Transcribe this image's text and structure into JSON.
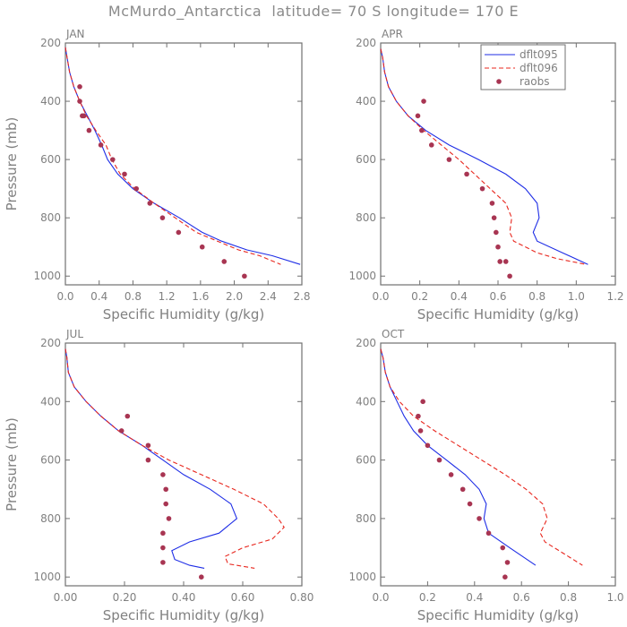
{
  "figure": {
    "title": "McMurdo_Antarctica  latitude= 70 S longitude= 170 E",
    "colors": {
      "axis": "#707070",
      "text": "#808080",
      "dflt095": "#1f2ee6",
      "dflt096": "#e8271e",
      "raobs": "#a83552"
    }
  },
  "chart_data": [
    {
      "type": "line",
      "panel": "JAN",
      "title": "JAN",
      "xlabel": "Specific Humidity (g/kg)",
      "ylabel": "Pressure (mb)",
      "xlim": [
        0,
        2.8
      ],
      "ylim": [
        200,
        1030
      ],
      "xticks": [
        "0.0",
        "0.4",
        "0.8",
        "1.2",
        "1.6",
        "2.0",
        "2.4",
        "2.8"
      ],
      "yticks": [
        "200",
        "400",
        "600",
        "800",
        "1000"
      ],
      "series": [
        {
          "name": "dflt095",
          "style": "solid",
          "x": [
            0.0,
            0.02,
            0.05,
            0.1,
            0.17,
            0.26,
            0.35,
            0.43,
            0.5,
            0.62,
            0.8,
            1.05,
            1.35,
            1.62,
            1.85,
            2.15,
            2.45,
            2.78
          ],
          "y": [
            215,
            250,
            300,
            350,
            400,
            450,
            500,
            550,
            600,
            650,
            700,
            750,
            800,
            850,
            880,
            910,
            930,
            960
          ]
        },
        {
          "name": "dflt096",
          "style": "dashed",
          "x": [
            0.0,
            0.02,
            0.05,
            0.1,
            0.17,
            0.25,
            0.36,
            0.48,
            0.55,
            0.65,
            0.82,
            1.05,
            1.3,
            1.55,
            1.8,
            2.05,
            2.3,
            2.55
          ],
          "y": [
            215,
            250,
            300,
            350,
            400,
            450,
            500,
            550,
            600,
            650,
            700,
            750,
            800,
            850,
            880,
            910,
            930,
            960
          ]
        },
        {
          "name": "raobs",
          "style": "markers",
          "x": [
            0.17,
            0.17,
            0.2,
            0.22,
            0.28,
            0.42,
            0.56,
            0.7,
            0.84,
            1.0,
            1.15,
            1.34,
            1.62,
            1.88,
            2.12
          ],
          "y": [
            350,
            400,
            450,
            450,
            500,
            550,
            600,
            650,
            700,
            750,
            800,
            850,
            900,
            950,
            1000
          ]
        }
      ]
    },
    {
      "type": "line",
      "panel": "APR",
      "title": "APR",
      "xlabel": "Specific Humidity (g/kg)",
      "ylabel": "Pressure (mb)",
      "xlim": [
        0,
        1.2
      ],
      "ylim": [
        200,
        1030
      ],
      "xticks": [
        "0.0",
        "0.2",
        "0.4",
        "0.6",
        "0.8",
        "1.0",
        "1.2"
      ],
      "yticks": [
        "200",
        "400",
        "600",
        "800",
        "1000"
      ],
      "legend": [
        "dflt095",
        "dflt096",
        "raobs"
      ],
      "series": [
        {
          "name": "dflt095",
          "style": "solid",
          "x": [
            0.0,
            0.01,
            0.02,
            0.04,
            0.08,
            0.14,
            0.23,
            0.35,
            0.5,
            0.64,
            0.74,
            0.8,
            0.81,
            0.78,
            0.8,
            0.93,
            1.06
          ],
          "y": [
            220,
            250,
            300,
            350,
            400,
            450,
            500,
            550,
            600,
            650,
            700,
            750,
            800,
            850,
            880,
            920,
            960
          ]
        },
        {
          "name": "dflt096",
          "style": "dashed",
          "x": [
            0.0,
            0.01,
            0.02,
            0.04,
            0.08,
            0.14,
            0.22,
            0.31,
            0.4,
            0.48,
            0.56,
            0.64,
            0.67,
            0.66,
            0.68,
            0.8,
            0.9,
            1.05
          ],
          "y": [
            220,
            250,
            300,
            350,
            400,
            450,
            500,
            550,
            600,
            650,
            700,
            750,
            800,
            850,
            880,
            920,
            940,
            960
          ]
        },
        {
          "name": "raobs",
          "style": "markers",
          "x": [
            0.22,
            0.19,
            0.21,
            0.26,
            0.35,
            0.44,
            0.52,
            0.57,
            0.58,
            0.59,
            0.6,
            0.61,
            0.64,
            0.66
          ],
          "y": [
            400,
            450,
            500,
            550,
            600,
            650,
            700,
            750,
            800,
            850,
            900,
            950,
            950,
            1000
          ]
        }
      ]
    },
    {
      "type": "line",
      "panel": "JUL",
      "title": "JUL",
      "xlabel": "Specific Humidity (g/kg)",
      "ylabel": "Pressure (mb)",
      "xlim": [
        0,
        0.8
      ],
      "ylim": [
        200,
        1030
      ],
      "xticks": [
        "0.00",
        "0.20",
        "0.40",
        "0.60",
        "0.80"
      ],
      "yticks": [
        "200",
        "400",
        "600",
        "800",
        "1000"
      ],
      "series": [
        {
          "name": "dflt095",
          "style": "solid",
          "x": [
            0.0,
            0.005,
            0.01,
            0.03,
            0.07,
            0.12,
            0.18,
            0.26,
            0.33,
            0.4,
            0.49,
            0.56,
            0.58,
            0.52,
            0.42,
            0.36,
            0.37,
            0.42,
            0.47
          ],
          "y": [
            220,
            250,
            300,
            350,
            400,
            450,
            500,
            550,
            600,
            650,
            700,
            750,
            800,
            850,
            880,
            910,
            940,
            960,
            970
          ]
        },
        {
          "name": "dflt096",
          "style": "dashed",
          "x": [
            0.0,
            0.005,
            0.01,
            0.03,
            0.07,
            0.12,
            0.18,
            0.26,
            0.35,
            0.46,
            0.57,
            0.67,
            0.72,
            0.74,
            0.7,
            0.6,
            0.54,
            0.55,
            0.64
          ],
          "y": [
            220,
            250,
            300,
            350,
            400,
            450,
            500,
            550,
            600,
            650,
            700,
            750,
            800,
            830,
            870,
            900,
            930,
            955,
            970
          ]
        },
        {
          "name": "raobs",
          "style": "markers",
          "x": [
            0.21,
            0.19,
            0.28,
            0.28,
            0.33,
            0.34,
            0.34,
            0.35,
            0.33,
            0.33,
            0.33,
            0.46
          ],
          "y": [
            450,
            500,
            550,
            600,
            650,
            700,
            750,
            800,
            850,
            900,
            950,
            1000
          ]
        }
      ]
    },
    {
      "type": "line",
      "panel": "OCT",
      "title": "OCT",
      "xlabel": "Specific Humidity (g/kg)",
      "ylabel": "Pressure (mb)",
      "xlim": [
        0,
        1.0
      ],
      "ylim": [
        200,
        1030
      ],
      "xticks": [
        "0.0",
        "0.2",
        "0.4",
        "0.6",
        "0.8",
        "1.0"
      ],
      "yticks": [
        "200",
        "400",
        "600",
        "800",
        "1000"
      ],
      "series": [
        {
          "name": "dflt095",
          "style": "solid",
          "x": [
            0.0,
            0.01,
            0.02,
            0.04,
            0.07,
            0.1,
            0.14,
            0.2,
            0.28,
            0.36,
            0.42,
            0.45,
            0.44,
            0.46,
            0.55,
            0.66
          ],
          "y": [
            220,
            250,
            300,
            350,
            400,
            450,
            500,
            550,
            600,
            650,
            700,
            750,
            800,
            850,
            900,
            960
          ]
        },
        {
          "name": "dflt096",
          "style": "dashed",
          "x": [
            0.0,
            0.01,
            0.02,
            0.04,
            0.08,
            0.14,
            0.23,
            0.33,
            0.43,
            0.53,
            0.62,
            0.69,
            0.71,
            0.68,
            0.7,
            0.8,
            0.86
          ],
          "y": [
            220,
            250,
            300,
            350,
            400,
            450,
            500,
            550,
            600,
            650,
            700,
            750,
            800,
            850,
            880,
            930,
            960
          ]
        },
        {
          "name": "raobs",
          "style": "markers",
          "x": [
            0.18,
            0.16,
            0.17,
            0.2,
            0.25,
            0.3,
            0.35,
            0.38,
            0.42,
            0.46,
            0.52,
            0.54,
            0.53
          ],
          "y": [
            400,
            450,
            500,
            550,
            600,
            650,
            700,
            750,
            800,
            850,
            900,
            950,
            1000
          ]
        }
      ]
    }
  ]
}
